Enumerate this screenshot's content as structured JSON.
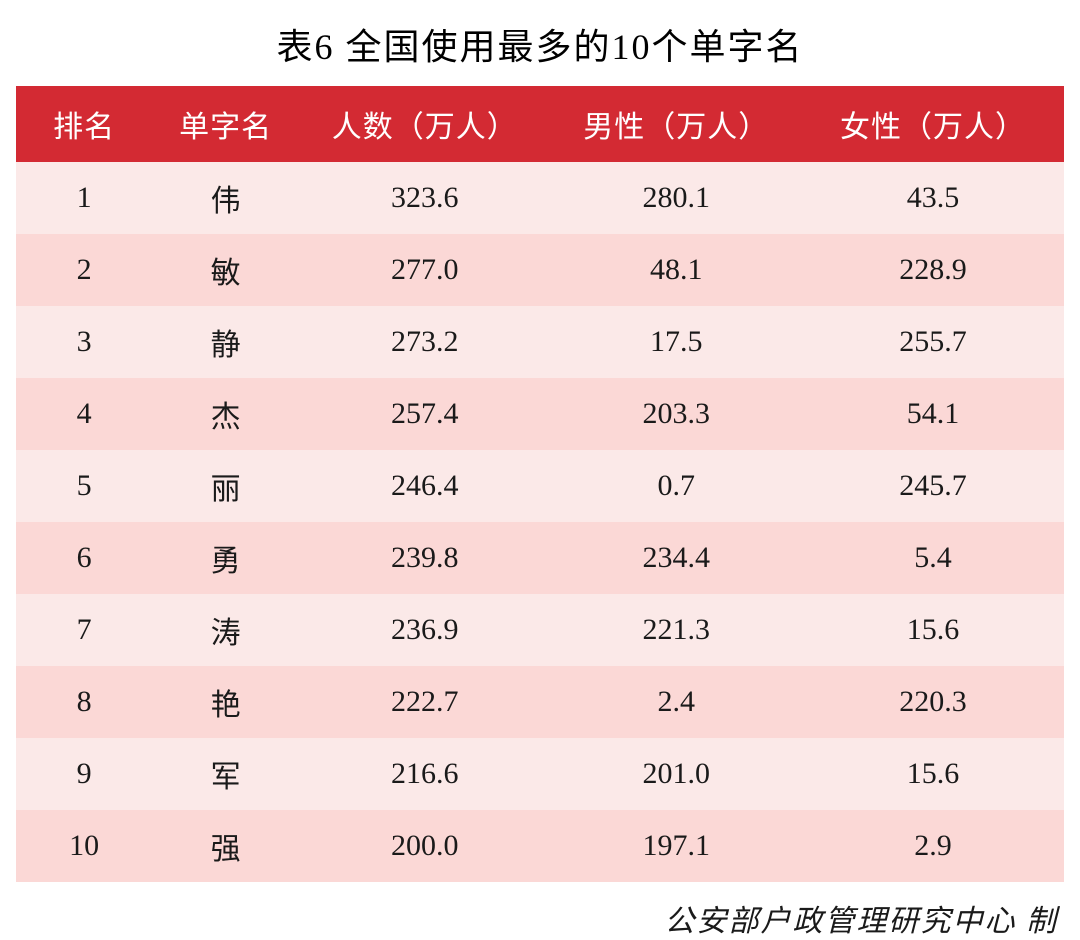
{
  "title": "表6 全国使用最多的10个单字名",
  "table": {
    "type": "table",
    "header_bg": "#d32a33",
    "header_fg": "#ffffff",
    "row_odd_bg": "#fbe9e8",
    "row_even_bg": "#fbd8d6",
    "text_color": "#1a1a1a",
    "title_fontsize": 36,
    "header_fontsize": 30,
    "cell_fontsize": 30,
    "columns": [
      "排名",
      "单字名",
      "人数（万人）",
      "男性（万人）",
      "女性（万人）"
    ],
    "column_widths_pct": [
      13,
      14,
      24,
      24,
      25
    ],
    "rows": [
      [
        "1",
        "伟",
        "323.6",
        "280.1",
        "43.5"
      ],
      [
        "2",
        "敏",
        "277.0",
        "48.1",
        "228.9"
      ],
      [
        "3",
        "静",
        "273.2",
        "17.5",
        "255.7"
      ],
      [
        "4",
        "杰",
        "257.4",
        "203.3",
        "54.1"
      ],
      [
        "5",
        "丽",
        "246.4",
        "0.7",
        "245.7"
      ],
      [
        "6",
        "勇",
        "239.8",
        "234.4",
        "5.4"
      ],
      [
        "7",
        "涛",
        "236.9",
        "221.3",
        "15.6"
      ],
      [
        "8",
        "艳",
        "222.7",
        "2.4",
        "220.3"
      ],
      [
        "9",
        "军",
        "216.6",
        "201.0",
        "15.6"
      ],
      [
        "10",
        "强",
        "200.0",
        "197.1",
        "2.9"
      ]
    ]
  },
  "footer": "公安部户政管理研究中心 制"
}
